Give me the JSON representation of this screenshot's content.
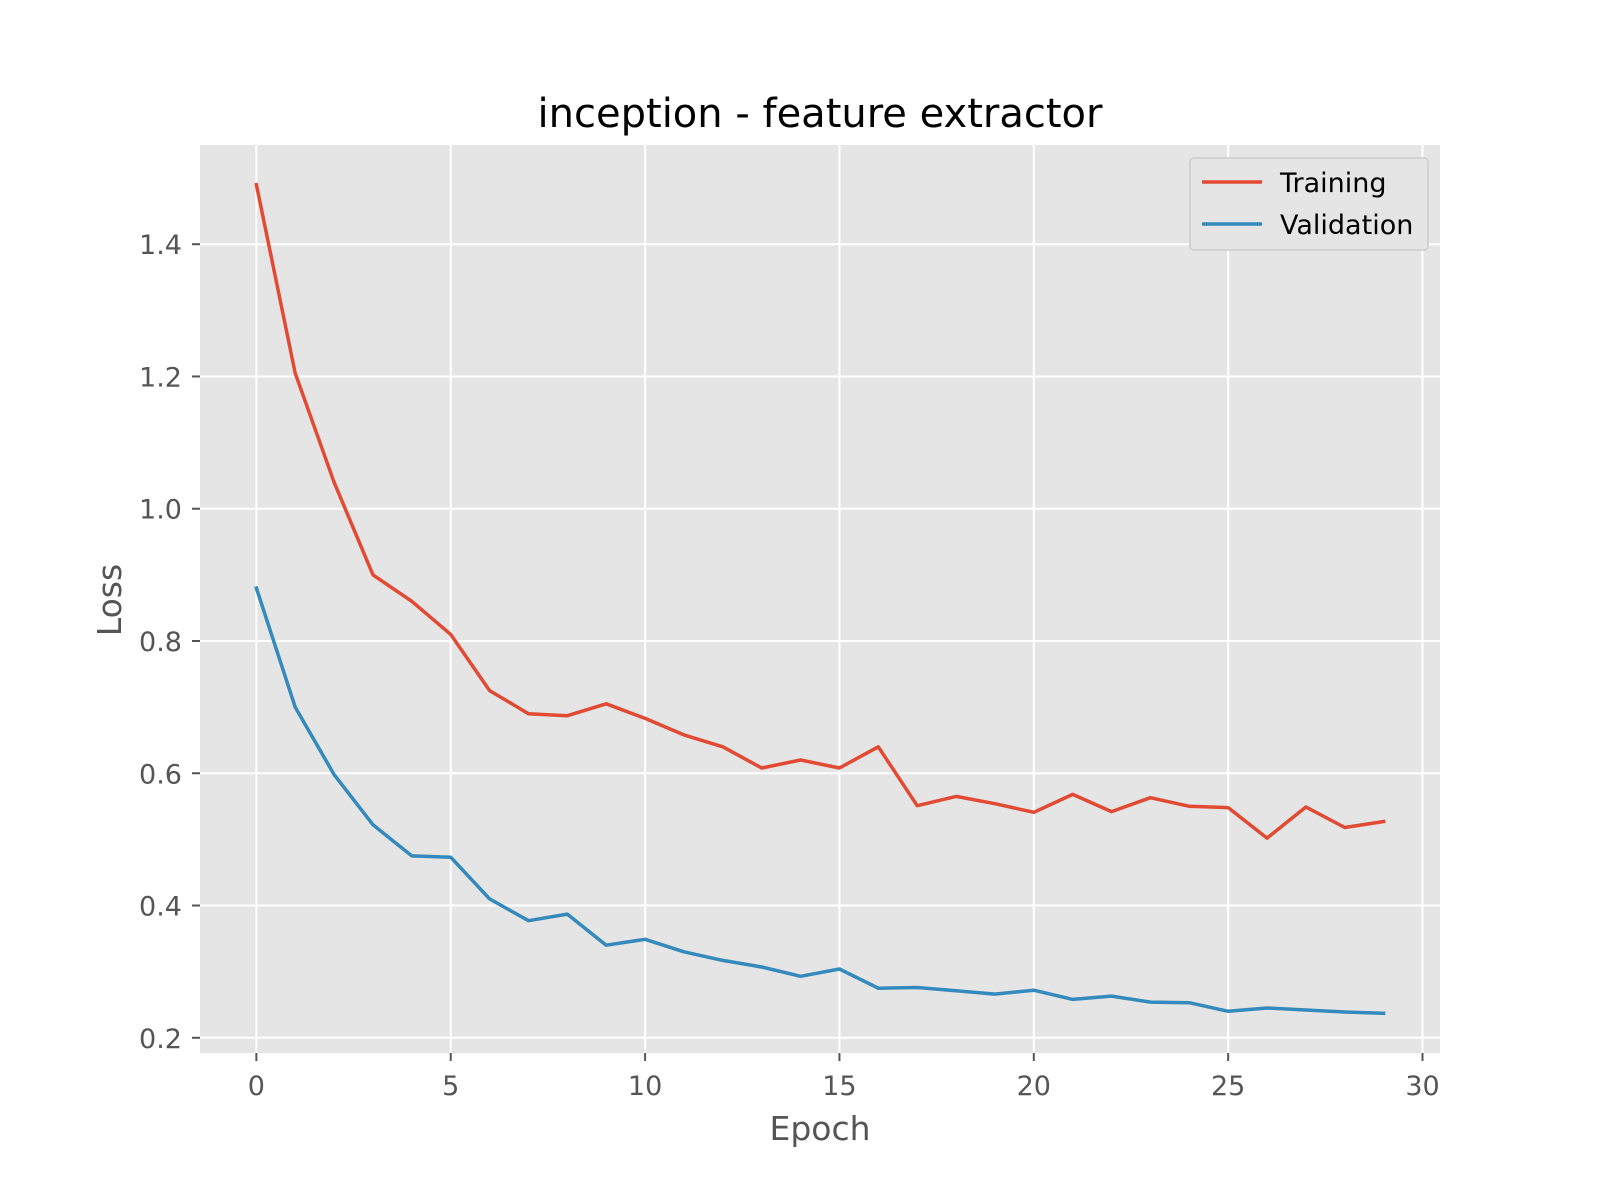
{
  "chart_data": {
    "type": "line",
    "title": "inception - feature extractor",
    "xlabel": "Epoch",
    "ylabel": "Loss",
    "xlim": [
      -1.45,
      30.45
    ],
    "ylim": [
      0.177,
      1.55
    ],
    "xticks": [
      0,
      5,
      10,
      15,
      20,
      25,
      30
    ],
    "yticks": [
      0.2,
      0.4,
      0.6,
      0.8,
      1.0,
      1.2,
      1.4
    ],
    "xtick_labels": [
      "0",
      "5",
      "10",
      "15",
      "20",
      "25",
      "30"
    ],
    "ytick_labels": [
      "0.2",
      "0.4",
      "0.6",
      "0.8",
      "1.0",
      "1.2",
      "1.4"
    ],
    "grid": true,
    "legend_position": "upper right",
    "x": [
      0,
      1,
      2,
      3,
      4,
      5,
      6,
      7,
      8,
      9,
      10,
      11,
      12,
      13,
      14,
      15,
      16,
      17,
      18,
      19,
      20,
      21,
      22,
      23,
      24,
      25,
      26,
      27,
      28,
      29
    ],
    "series": [
      {
        "name": "Training",
        "color": "#E24A33",
        "values": [
          1.49,
          1.205,
          1.04,
          0.9,
          0.86,
          0.81,
          0.725,
          0.69,
          0.687,
          0.705,
          0.683,
          0.658,
          0.64,
          0.608,
          0.62,
          0.608,
          0.64,
          0.551,
          0.565,
          0.554,
          0.541,
          0.568,
          0.542,
          0.563,
          0.55,
          0.548,
          0.502,
          0.549,
          0.518,
          0.527
        ]
      },
      {
        "name": "Validation",
        "color": "#348ABD",
        "values": [
          0.88,
          0.7,
          0.598,
          0.522,
          0.475,
          0.473,
          0.41,
          0.377,
          0.387,
          0.34,
          0.349,
          0.33,
          0.317,
          0.307,
          0.293,
          0.304,
          0.275,
          0.276,
          0.271,
          0.266,
          0.272,
          0.258,
          0.263,
          0.254,
          0.253,
          0.24,
          0.245,
          0.242,
          0.239,
          0.237
        ]
      }
    ]
  }
}
